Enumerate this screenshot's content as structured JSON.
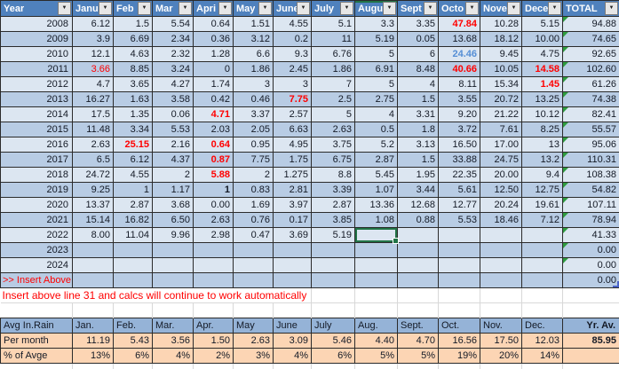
{
  "colors": {
    "header_blue": "#4F81BD",
    "header_text": "#FFFFFF",
    "band_light": "#DCE6F1",
    "band_dark": "#B8CCE4",
    "avg_header_blue": "#95B3D7",
    "peach": "#FCD5B4",
    "red": "#FF0000",
    "blue_value": "#558ED5",
    "selection_green": "#217346",
    "flag_green": "#2E9C3F",
    "end_marker_blue": "#4A63C8",
    "grid_border": "#2B2B2B",
    "gridline_light": "#D8D8D8",
    "ink": "#141A26",
    "filter_btn_bg": "#E6E6E6",
    "filter_btn_border": "#7B7B7B"
  },
  "icons": {
    "dropdown": "▼"
  },
  "main_table": {
    "columns": [
      {
        "label": "Year",
        "name": "year"
      },
      {
        "label": "Janu",
        "name": "jan"
      },
      {
        "label": "Feb",
        "name": "feb"
      },
      {
        "label": "Mar",
        "name": "mar"
      },
      {
        "label": "Apri",
        "name": "apr"
      },
      {
        "label": "May",
        "name": "may"
      },
      {
        "label": "June",
        "name": "jun"
      },
      {
        "label": "July",
        "name": "jul"
      },
      {
        "label": "Augu",
        "name": "aug",
        "selected": true
      },
      {
        "label": "Sept",
        "name": "sep"
      },
      {
        "label": "Octo",
        "name": "oct"
      },
      {
        "label": "Nove",
        "name": "nov"
      },
      {
        "label": "Dece",
        "name": "dec"
      },
      {
        "label": "TOTAL",
        "name": "total"
      }
    ],
    "active": {
      "row_index": 14,
      "col_index": 7
    },
    "rows": [
      {
        "year": "2008",
        "cells": [
          "6.12",
          "1.5",
          "5.54",
          "0.64",
          "1.51",
          "4.55",
          "5.1",
          "3.3",
          "3.35",
          "47.84",
          "10.28",
          "5.15"
        ],
        "total": "94.88",
        "flag": true,
        "styles": {
          "9": "red-bold"
        }
      },
      {
        "year": "2009",
        "cells": [
          "3.9",
          "6.69",
          "2.34",
          "0.36",
          "3.12",
          "0.2",
          "11",
          "5.19",
          "0.05",
          "13.68",
          "18.12",
          "10.00"
        ],
        "total": "74.65",
        "flag": true
      },
      {
        "year": "2010",
        "cells": [
          "12.1",
          "4.63",
          "2.32",
          "1.28",
          "6.6",
          "9.3",
          "6.76",
          "5",
          "6",
          "24.46",
          "9.45",
          "4.75"
        ],
        "total": "92.65",
        "flag": true,
        "styles": {
          "9": "blue-bold"
        }
      },
      {
        "year": "2011",
        "cells": [
          "3.66",
          "8.85",
          "3.24",
          "0",
          "1.86",
          "2.45",
          "1.86",
          "6.91",
          "8.48",
          "40.66",
          "10.05",
          "14.58"
        ],
        "total": "102.60",
        "flag": true,
        "styles": {
          "0": "red",
          "9": "red-bold",
          "11": "red-bold"
        }
      },
      {
        "year": "2012",
        "cells": [
          "4.7",
          "3.65",
          "4.27",
          "1.74",
          "3",
          "3",
          "7",
          "5",
          "4",
          "8.11",
          "15.34",
          "1.45"
        ],
        "total": "61.26",
        "flag": true,
        "styles": {
          "11": "red-bold"
        }
      },
      {
        "year": "2013",
        "cells": [
          "16.27",
          "1.63",
          "3.58",
          "0.42",
          "0.46",
          "7.75",
          "2.5",
          "2.75",
          "1.5",
          "3.55",
          "20.72",
          "13.25"
        ],
        "total": "74.38",
        "flag": true,
        "styles": {
          "5": "red-bold"
        }
      },
      {
        "year": "2014",
        "cells": [
          "17.5",
          "1.35",
          "0.06",
          "4.71",
          "3.37",
          "2.57",
          "5",
          "4",
          "3.31",
          "9.20",
          "21.22",
          "10.12"
        ],
        "total": "82.41",
        "flag": true,
        "styles": {
          "3": "red-bold"
        }
      },
      {
        "year": "2015",
        "cells": [
          "11.48",
          "3.34",
          "5.53",
          "2.03",
          "2.05",
          "6.63",
          "2.63",
          "0.5",
          "1.8",
          "3.72",
          "7.61",
          "8.25"
        ],
        "total": "55.57",
        "flag": true
      },
      {
        "year": "2016",
        "cells": [
          "2.63",
          "25.15",
          "2.16",
          "0.64",
          "0.95",
          "4.95",
          "3.75",
          "5.2",
          "3.13",
          "16.50",
          "17.00",
          "13"
        ],
        "total": "95.06",
        "flag": true,
        "styles": {
          "1": "red-bold",
          "3": "red-bold"
        }
      },
      {
        "year": "2017",
        "cells": [
          "6.5",
          "6.12",
          "4.37",
          "0.87",
          "7.75",
          "1.75",
          "6.75",
          "2.87",
          "1.5",
          "33.88",
          "24.75",
          "13.2"
        ],
        "total": "110.31",
        "flag": true,
        "styles": {
          "3": "red-bold"
        }
      },
      {
        "year": "2018",
        "cells": [
          "24.72",
          "4.55",
          "2",
          "5.88",
          "2",
          "1.275",
          "8.8",
          "5.45",
          "1.95",
          "22.35",
          "20.00",
          "9.4"
        ],
        "total": "108.38",
        "flag": true,
        "styles": {
          "3": "red-bold"
        }
      },
      {
        "year": "2019",
        "cells": [
          "9.25",
          "1",
          "1.17",
          "1",
          "0.83",
          "2.81",
          "3.39",
          "1.07",
          "3.44",
          "5.61",
          "12.50",
          "12.75"
        ],
        "total": "54.82",
        "flag": true,
        "styles": {
          "3": "bold"
        }
      },
      {
        "year": "2020",
        "cells": [
          "13.37",
          "2.87",
          "3.68",
          "0.00",
          "1.69",
          "3.97",
          "2.87",
          "13.36",
          "12.68",
          "12.77",
          "20.24",
          "19.61"
        ],
        "total": "107.11",
        "flag": true
      },
      {
        "year": "2021",
        "cells": [
          "15.14",
          "16.82",
          "6.50",
          "2.63",
          "0.76",
          "0.17",
          "3.85",
          "1.08",
          "0.88",
          "5.53",
          "18.46",
          "7.12"
        ],
        "total": "78.94",
        "flag": true
      },
      {
        "year": "2022",
        "cells": [
          "8.00",
          "11.04",
          "9.96",
          "2.98",
          "0.47",
          "3.69",
          "5.19",
          "",
          "",
          "",
          "",
          ""
        ],
        "total": "41.33",
        "flag": true
      },
      {
        "year": "2023",
        "cells": [
          "",
          "",
          "",
          "",
          "",
          "",
          "",
          "",
          "",
          "",
          "",
          ""
        ],
        "total": "0.00",
        "flag": true
      },
      {
        "year": "2024",
        "cells": [
          "",
          "",
          "",
          "",
          "",
          "",
          "",
          "",
          "",
          "",
          "",
          ""
        ],
        "total": "0.00",
        "flag": true
      },
      {
        "year": ">> Insert Above",
        "cells": [
          "",
          "",
          "",
          "",
          "",
          "",
          "",
          "",
          "",
          "",
          "",
          ""
        ],
        "total": "0.00",
        "insert": true,
        "end_marker": true
      }
    ]
  },
  "insert_note": "Insert above line 31 and calcs will continue to work automatically",
  "avg_table": {
    "corner_label": "Avg In.Rain",
    "columns": [
      "Jan.",
      "Feb.",
      "Mar.",
      "Apr.",
      "May",
      "June",
      "July",
      "Aug.",
      "Sept.",
      "Oct.",
      "Nov.",
      "Dec.",
      "Yr. Av."
    ],
    "rows": [
      {
        "label": "Per month",
        "values": [
          "11.19",
          "5.43",
          "3.56",
          "1.50",
          "2.63",
          "3.09",
          "5.46",
          "4.40",
          "4.70",
          "16.56",
          "17.50",
          "12.03"
        ],
        "year_avg": "85.95"
      },
      {
        "label": "% of Avge",
        "values": [
          "13%",
          "6%",
          "4%",
          "2%",
          "3%",
          "4%",
          "6%",
          "5%",
          "5%",
          "19%",
          "20%",
          "14%"
        ],
        "year_avg": ""
      }
    ]
  }
}
